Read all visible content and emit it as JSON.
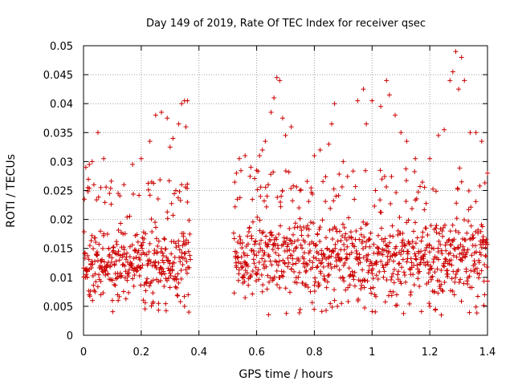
{
  "chart_data": {
    "type": "scatter",
    "title": "Day 149 of 2019, Rate Of TEC Index for receiver qsec",
    "xlabel": "GPS time / hours",
    "ylabel": "ROTI / TECUs",
    "xlim": [
      0,
      1.4
    ],
    "ylim": [
      0,
      0.05
    ],
    "grid": true,
    "marker": "+",
    "xticks": [
      0,
      0.2,
      0.4,
      0.6,
      0.8,
      1.0,
      1.2,
      1.4
    ],
    "xtick_labels": [
      "0",
      "0.2",
      "0.4",
      "0.6",
      "0.8",
      "1",
      "1.2",
      "1.4"
    ],
    "yticks": [
      0,
      0.005,
      0.01,
      0.015,
      0.02,
      0.025,
      0.03,
      0.035,
      0.04,
      0.045,
      0.05
    ],
    "ytick_labels": [
      "0",
      "0.005",
      "0.01",
      "0.015",
      "0.02",
      "0.025",
      "0.03",
      "0.035",
      "0.04",
      "0.045",
      "0.05"
    ],
    "series": [
      {
        "name": "ROTI",
        "color": "#cc0000",
        "segments": [
          {
            "x_start": 0.0,
            "x_end": 0.37,
            "min": 0.004,
            "max": 0.041,
            "core_min": 0.006,
            "core_max": 0.019
          },
          {
            "x_start": 0.52,
            "x_end": 1.4,
            "min": 0.0035,
            "max": 0.049,
            "core_min": 0.006,
            "core_max": 0.021
          }
        ],
        "points": [
          [
            0.003,
            0.0235
          ],
          [
            0.008,
            0.029
          ],
          [
            0.015,
            0.0255
          ],
          [
            0.02,
            0.0295
          ],
          [
            0.03,
            0.03
          ],
          [
            0.05,
            0.035
          ],
          [
            0.07,
            0.0305
          ],
          [
            0.06,
            0.0255
          ],
          [
            0.09,
            0.0245
          ],
          [
            0.12,
            0.0245
          ],
          [
            0.14,
            0.026
          ],
          [
            0.17,
            0.0295
          ],
          [
            0.2,
            0.0305
          ],
          [
            0.23,
            0.0335
          ],
          [
            0.25,
            0.038
          ],
          [
            0.27,
            0.0385
          ],
          [
            0.29,
            0.0375
          ],
          [
            0.3,
            0.0325
          ],
          [
            0.31,
            0.034
          ],
          [
            0.33,
            0.0365
          ],
          [
            0.34,
            0.04
          ],
          [
            0.35,
            0.0405
          ],
          [
            0.36,
            0.0405
          ],
          [
            0.355,
            0.036
          ],
          [
            0.34,
            0.026
          ],
          [
            0.32,
            0.025
          ],
          [
            0.36,
            0.023
          ],
          [
            0.365,
            0.004
          ],
          [
            0.35,
            0.005
          ],
          [
            0.26,
            0.0055
          ],
          [
            0.24,
            0.0055
          ],
          [
            0.1,
            0.006
          ],
          [
            0.12,
            0.006
          ],
          [
            0.02,
            0.007
          ],
          [
            0.04,
            0.0075
          ],
          [
            0.06,
            0.007
          ],
          [
            0.53,
            0.028
          ],
          [
            0.54,
            0.0305
          ],
          [
            0.56,
            0.031
          ],
          [
            0.58,
            0.029
          ],
          [
            0.6,
            0.0285
          ],
          [
            0.61,
            0.031
          ],
          [
            0.62,
            0.032
          ],
          [
            0.63,
            0.0335
          ],
          [
            0.64,
            0.026
          ],
          [
            0.65,
            0.0385
          ],
          [
            0.66,
            0.041
          ],
          [
            0.67,
            0.0445
          ],
          [
            0.68,
            0.044
          ],
          [
            0.69,
            0.0375
          ],
          [
            0.7,
            0.0345
          ],
          [
            0.72,
            0.036
          ],
          [
            0.75,
            0.025
          ],
          [
            0.8,
            0.031
          ],
          [
            0.82,
            0.032
          ],
          [
            0.85,
            0.033
          ],
          [
            0.86,
            0.0365
          ],
          [
            0.87,
            0.04
          ],
          [
            0.9,
            0.03
          ],
          [
            0.95,
            0.0405
          ],
          [
            0.97,
            0.0425
          ],
          [
            0.98,
            0.0365
          ],
          [
            1.0,
            0.0405
          ],
          [
            1.03,
            0.0395
          ],
          [
            1.05,
            0.044
          ],
          [
            1.06,
            0.0415
          ],
          [
            1.08,
            0.038
          ],
          [
            1.1,
            0.035
          ],
          [
            1.12,
            0.0335
          ],
          [
            1.15,
            0.0305
          ],
          [
            1.2,
            0.0305
          ],
          [
            1.23,
            0.0345
          ],
          [
            1.25,
            0.0355
          ],
          [
            1.27,
            0.044
          ],
          [
            1.28,
            0.0455
          ],
          [
            1.29,
            0.049
          ],
          [
            1.3,
            0.0425
          ],
          [
            1.31,
            0.048
          ],
          [
            1.32,
            0.044
          ],
          [
            1.34,
            0.035
          ],
          [
            1.36,
            0.035
          ],
          [
            1.38,
            0.0335
          ],
          [
            1.4,
            0.028
          ],
          [
            1.22,
            0.0045
          ],
          [
            1.24,
            0.0035
          ],
          [
            1.2,
            0.005
          ],
          [
            0.56,
            0.0065
          ],
          [
            0.87,
            0.006
          ],
          [
            0.88,
            0.005
          ],
          [
            1.39,
            0.007
          ]
        ]
      }
    ]
  }
}
